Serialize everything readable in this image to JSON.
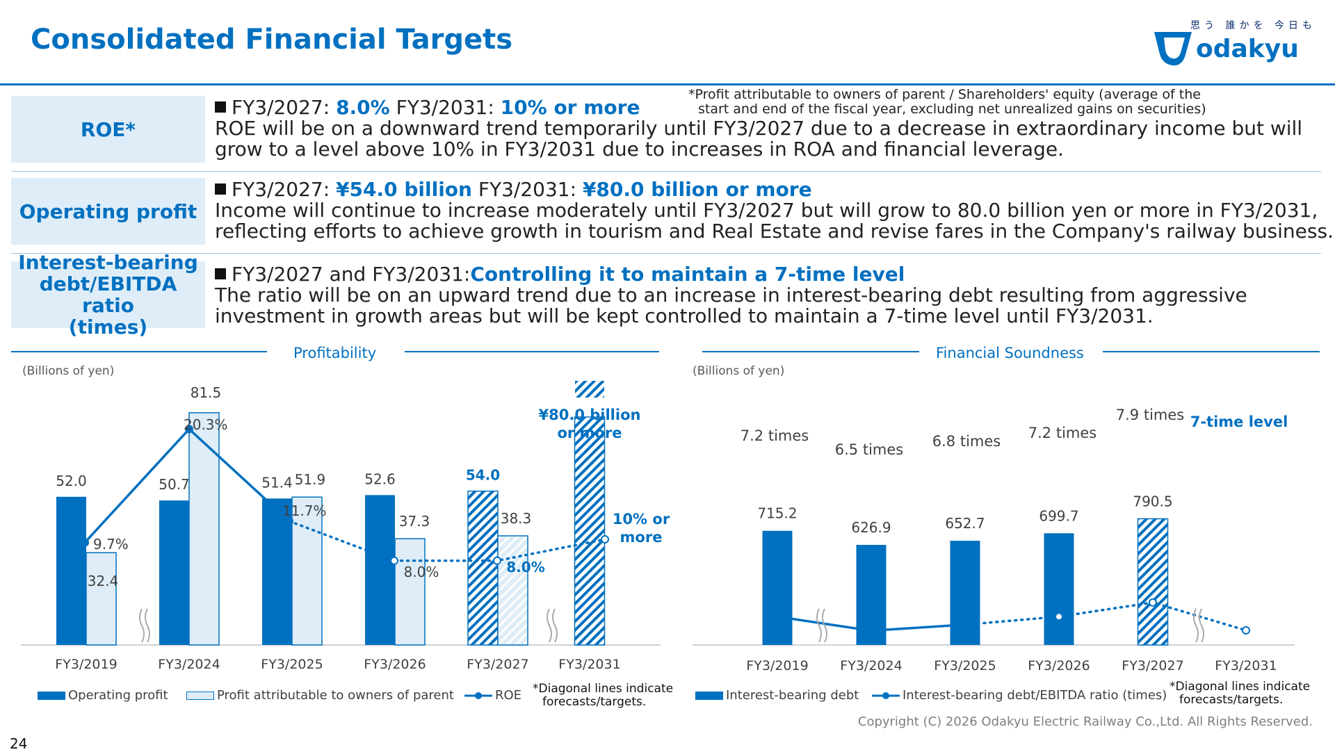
{
  "header": {
    "title": "Consolidated Financial Targets",
    "logo_tagline": "思う 誰かを 今日も",
    "logo_word": "odakyu"
  },
  "note_top": {
    "line1": "*Profit attributable to owners of parent / Shareholders' equity (average of the",
    "line2": "start and end of the fiscal year, excluding net unrealized gains on securities)"
  },
  "rows": [
    {
      "label": "ROE*",
      "head_a": "FY3/2027: ",
      "head_b": "8.0%",
      "head_c": " FY3/2031: ",
      "head_d": "10% or more",
      "line1": "ROE will be on a downward trend temporarily until FY3/2027 due to a decrease in extraordinary income but will",
      "line2": "grow to a level above 10% in FY3/2031 due to increases in ROA and financial leverage."
    },
    {
      "label": "Operating profit",
      "head_a": "FY3/2027: ",
      "head_b": "¥54.0 billion",
      "head_c": " FY3/2031: ",
      "head_d": "¥80.0 billion or more",
      "line1": "Income will continue to increase moderately until FY3/2027 but will grow to 80.0 billion yen or more in FY3/2031,",
      "line2": "reflecting efforts to achieve growth in tourism and Real Estate and revise fares in the Company's railway business."
    },
    {
      "label_1": "Interest-bearing",
      "label_2": "debt/EBITDA ratio",
      "label_3": "(times)",
      "head_a": "FY3/2027 and FY3/2031:",
      "head_b": "Controlling it to maintain a 7-time level",
      "line1": "The ratio will be on an upward trend due to an increase in interest-bearing debt resulting from aggressive",
      "line2": "investment in growth areas but will be kept controlled to maintain a 7-time level until FY3/2031."
    }
  ],
  "colors": {
    "primary": "#0070c0",
    "light_fill": "#deedf8"
  },
  "chart_data": [
    {
      "type": "bar",
      "title": "Profitability",
      "unit_label": "(Billions of yen)",
      "categories": [
        "FY3/2019",
        "FY3/2024",
        "FY3/2025",
        "FY3/2026",
        "FY3/2027",
        "FY3/2031"
      ],
      "series": [
        {
          "name": "Operating profit",
          "values": [
            52.0,
            50.7,
            51.4,
            52.6,
            54.0,
            80.0
          ],
          "labels": [
            "52.0",
            "50.7",
            "51.4",
            "52.6",
            "54.0",
            "¥80.0 billion or more"
          ],
          "forecast_from_index": 4
        },
        {
          "name": "Profit attributable to owners of parent",
          "values": [
            32.4,
            81.5,
            51.9,
            37.3,
            38.3,
            null
          ],
          "labels": [
            "32.4",
            "81.5",
            "51.9",
            "37.3",
            "38.3",
            ""
          ],
          "forecast_from_index": 4
        },
        {
          "name": "ROE",
          "type": "line",
          "values": [
            9.7,
            20.3,
            11.7,
            8.0,
            8.0,
            10.0
          ],
          "labels": [
            "9.7%",
            "20.3%",
            "11.7%",
            "8.0%",
            "8.0%",
            "10% or more"
          ],
          "dotted_from_index": 2
        }
      ],
      "value_label_extra_1": "¥80.0 billion",
      "value_label_extra_2": "or more",
      "roe_label_extra_1": "10% or",
      "roe_label_extra_2": "more",
      "note_1": "*Diagonal lines indicate",
      "note_2": "forecasts/targets."
    },
    {
      "type": "bar",
      "title": "Financial Soundness",
      "unit_label": "(Billions of yen)",
      "categories": [
        "FY3/2019",
        "FY3/2024",
        "FY3/2025",
        "FY3/2026",
        "FY3/2027",
        "FY3/2031"
      ],
      "series": [
        {
          "name": "Interest-bearing debt",
          "values": [
            715.2,
            626.9,
            652.7,
            699.7,
            790.5,
            null
          ],
          "labels": [
            "715.2",
            "626.9",
            "652.7",
            "699.7",
            "790.5",
            ""
          ],
          "forecast_from_index": 4
        },
        {
          "name": "Interest-bearing debt/EBITDA ratio (times)",
          "type": "line",
          "values": [
            7.2,
            6.5,
            6.8,
            7.2,
            7.9,
            7.0
          ],
          "labels": [
            "7.2 times",
            "6.5 times",
            "6.8 times",
            "7.2 times",
            "7.9 times",
            "7-time level"
          ],
          "dotted_from_index": 2
        }
      ],
      "note_1": "*Diagonal lines indicate",
      "note_2": "forecasts/targets."
    }
  ],
  "footer": {
    "copyright": "Copyright (C) 2026 Odakyu Electric Railway Co.,Ltd. All Rights Reserved.",
    "page_number": "24"
  }
}
